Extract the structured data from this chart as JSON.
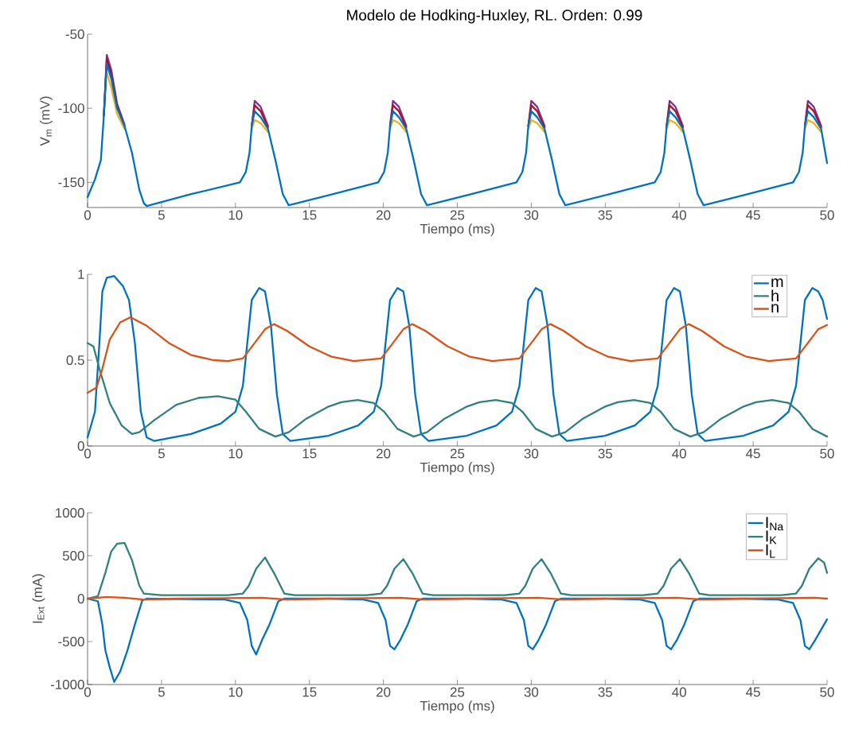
{
  "chart_data": [
    {
      "type": "line",
      "title": "Modelo de Hodking-Huxley, RL. Orden: 0.99",
      "xlabel": "Tiempo (ms)",
      "ylabel": "V$_{m}$ (mV)",
      "xlim": [
        0,
        50
      ],
      "ylim": [
        -167,
        -50
      ],
      "xticks": [
        0,
        5,
        10,
        15,
        20,
        25,
        30,
        35,
        40,
        45,
        50
      ],
      "yticks": [
        -150,
        -100,
        -50
      ],
      "grid": false,
      "legend": false,
      "marker": "none",
      "line_style": "solid",
      "series": [
        {
          "color": "#7e2f8e",
          "x": [
            1.1,
            1.3,
            1.6,
            2.0,
            2.5,
            5,
            11.1,
            11.3,
            11.7,
            12.2,
            15,
            20.45,
            20.65,
            21.05,
            21.55,
            25,
            29.8,
            30.0,
            30.4,
            30.9,
            35,
            39.15,
            39.35,
            39.75,
            40.25,
            45,
            48.5,
            48.7,
            49.1,
            49.6
          ],
          "values": [
            -105,
            -64,
            -74,
            -97,
            -111,
            null,
            -112,
            -95,
            -99,
            -112,
            null,
            -112,
            -95,
            -99,
            -112,
            null,
            -112,
            -95,
            -99,
            -112,
            null,
            -112,
            -95,
            -99,
            -112,
            null,
            -112,
            -95,
            -99,
            -112
          ]
        },
        {
          "color": "#a2142f",
          "x": [
            1.1,
            1.3,
            1.6,
            2.0,
            2.5,
            5,
            11.1,
            11.3,
            11.7,
            12.2,
            15,
            20.45,
            20.65,
            21.05,
            21.55,
            25,
            29.8,
            30.0,
            30.4,
            30.9,
            35,
            39.15,
            39.35,
            39.75,
            40.25,
            45,
            48.5,
            48.7,
            49.1,
            49.6
          ],
          "values": [
            -105,
            -67,
            -77,
            -99,
            -112,
            null,
            -112,
            -98,
            -102,
            -113,
            null,
            -112,
            -98,
            -102,
            -113,
            null,
            -112,
            -98,
            -102,
            -113,
            null,
            -112,
            -98,
            -102,
            -113,
            null,
            -112,
            -98,
            -102,
            -113
          ]
        },
        {
          "color": "#edb120",
          "x": [
            1.3,
            1.6,
            2.0,
            2.5,
            5,
            11.1,
            11.3,
            11.7,
            12.2,
            15,
            20.45,
            20.65,
            21.05,
            21.55,
            25,
            29.8,
            30.0,
            30.4,
            30.9,
            35,
            39.15,
            39.35,
            39.75,
            40.25,
            45,
            48.5,
            48.7,
            49.1,
            49.6
          ],
          "values": [
            -76,
            -86,
            -104,
            -114,
            null,
            -114,
            -108,
            -110,
            -116,
            null,
            -114,
            -108,
            -110,
            -116,
            null,
            -114,
            -108,
            -110,
            -116,
            null,
            -114,
            -108,
            -110,
            -116,
            null,
            -114,
            -108,
            -110,
            -116
          ]
        },
        {
          "color": "#0072bd",
          "x": [
            0,
            0.5,
            0.9,
            1.1,
            1.3,
            1.6,
            2.0,
            2.5,
            3.0,
            3.5,
            3.8,
            4.0,
            7.0,
            10.3,
            10.7,
            10.95,
            11.1,
            11.3,
            11.7,
            12.2,
            12.7,
            13.2,
            13.6,
            16.6,
            19.65,
            20.05,
            20.3,
            20.45,
            20.65,
            21.05,
            21.55,
            22.05,
            22.55,
            22.95,
            25.95,
            29.0,
            29.4,
            29.65,
            29.8,
            30.0,
            30.4,
            30.9,
            31.4,
            31.9,
            32.3,
            35.3,
            38.35,
            38.75,
            39.0,
            39.15,
            39.35,
            39.75,
            40.25,
            40.75,
            41.25,
            41.65,
            44.65,
            47.7,
            48.1,
            48.35,
            48.5,
            48.7,
            49.1,
            49.6,
            50
          ],
          "values": [
            -160,
            -148,
            -135,
            -105,
            -70,
            -80,
            -100,
            -112,
            -130,
            -155,
            -164,
            -166,
            -158,
            -150,
            -143,
            -130,
            -112,
            -102,
            -106,
            -114,
            -135,
            -158,
            -165.5,
            -158,
            -150,
            -143,
            -130,
            -112,
            -102,
            -106,
            -114,
            -135,
            -158,
            -165.5,
            -158,
            -150,
            -143,
            -130,
            -112,
            -102,
            -106,
            -114,
            -135,
            -158,
            -165.5,
            -158,
            -150,
            -143,
            -130,
            -112,
            -102,
            -106,
            -114,
            -135,
            -158,
            -165.5,
            -158,
            -150,
            -143,
            -130,
            -112,
            -102,
            -106,
            -114,
            -137
          ]
        }
      ]
    },
    {
      "type": "line",
      "xlabel": "Tiempo (ms)",
      "xlim": [
        0,
        50
      ],
      "ylim": [
        0,
        1
      ],
      "xticks": [
        0,
        5,
        10,
        15,
        20,
        25,
        30,
        35,
        40,
        45,
        50
      ],
      "yticks": [
        0,
        0.5,
        1
      ],
      "grid": false,
      "legend": "top right",
      "marker": "none",
      "line_style": "solid",
      "series": [
        {
          "name": "m",
          "color": "#0072bd",
          "x": [
            0,
            0.5,
            0.8,
            1.0,
            1.3,
            1.8,
            2.4,
            2.8,
            3.2,
            3.6,
            4.0,
            4.5,
            7,
            9,
            10.0,
            10.5,
            10.8,
            11.1,
            11.6,
            12.0,
            12.4,
            12.8,
            13.2,
            13.7,
            16.3,
            18.3,
            19.35,
            19.85,
            20.15,
            20.45,
            20.95,
            21.35,
            21.75,
            22.15,
            22.55,
            23.05,
            25.65,
            27.65,
            28.7,
            29.2,
            29.5,
            29.8,
            30.3,
            30.7,
            31.1,
            31.5,
            31.9,
            32.4,
            35.0,
            37.0,
            38.05,
            38.55,
            38.85,
            39.15,
            39.65,
            40.05,
            40.45,
            40.85,
            41.25,
            41.75,
            44.35,
            46.35,
            47.4,
            47.9,
            48.2,
            48.5,
            49.0,
            49.4,
            49.7,
            50
          ],
          "values": [
            0.05,
            0.2,
            0.6,
            0.9,
            0.98,
            0.99,
            0.93,
            0.85,
            0.6,
            0.2,
            0.05,
            0.03,
            0.07,
            0.13,
            0.2,
            0.35,
            0.6,
            0.85,
            0.92,
            0.9,
            0.7,
            0.3,
            0.07,
            0.03,
            0.06,
            0.12,
            0.2,
            0.35,
            0.6,
            0.85,
            0.92,
            0.9,
            0.7,
            0.3,
            0.07,
            0.03,
            0.06,
            0.12,
            0.2,
            0.35,
            0.6,
            0.85,
            0.92,
            0.9,
            0.7,
            0.3,
            0.07,
            0.03,
            0.06,
            0.12,
            0.2,
            0.35,
            0.6,
            0.85,
            0.92,
            0.9,
            0.7,
            0.3,
            0.07,
            0.03,
            0.06,
            0.12,
            0.2,
            0.35,
            0.6,
            0.85,
            0.92,
            0.9,
            0.85,
            0.74
          ]
        },
        {
          "name": "h",
          "color": "#31807d",
          "x": [
            0,
            0.4,
            0.8,
            1.5,
            2.3,
            3.0,
            3.5,
            4.5,
            6.0,
            7.5,
            8.8,
            10.0,
            10.7,
            11.6,
            12.7,
            13.6,
            14.8,
            16.3,
            17.15,
            18.25,
            19.35,
            20.05,
            20.95,
            22.05,
            22.95,
            24.15,
            25.65,
            26.5,
            27.6,
            28.7,
            29.4,
            30.3,
            31.4,
            32.3,
            33.5,
            35.0,
            35.85,
            36.95,
            38.05,
            38.75,
            39.65,
            40.75,
            41.65,
            42.85,
            44.35,
            45.2,
            46.3,
            47.4,
            48.1,
            49.0,
            50
          ],
          "values": [
            0.6,
            0.58,
            0.45,
            0.25,
            0.12,
            0.07,
            0.08,
            0.15,
            0.24,
            0.28,
            0.29,
            0.27,
            0.2,
            0.1,
            0.055,
            0.08,
            0.16,
            0.23,
            0.255,
            0.268,
            0.25,
            0.2,
            0.1,
            0.055,
            0.08,
            0.16,
            0.23,
            0.255,
            0.268,
            0.25,
            0.2,
            0.1,
            0.055,
            0.08,
            0.16,
            0.23,
            0.255,
            0.268,
            0.25,
            0.2,
            0.1,
            0.055,
            0.08,
            0.16,
            0.23,
            0.255,
            0.268,
            0.25,
            0.2,
            0.1,
            0.055
          ]
        },
        {
          "name": "n",
          "color": "#d95319",
          "x": [
            0,
            0.6,
            1.0,
            1.5,
            2.2,
            2.9,
            4.0,
            5.5,
            7.0,
            8.5,
            9.5,
            10.5,
            11.3,
            12.0,
            12.6,
            13.5,
            15.0,
            16.5,
            18.0,
            19.85,
            20.65,
            21.35,
            21.95,
            22.85,
            24.35,
            25.85,
            27.35,
            29.2,
            30.0,
            30.7,
            31.3,
            32.2,
            33.7,
            35.2,
            36.7,
            38.55,
            39.35,
            40.05,
            40.65,
            41.55,
            43.05,
            44.55,
            46.05,
            47.9,
            48.7,
            49.4,
            50
          ],
          "values": [
            0.31,
            0.34,
            0.45,
            0.62,
            0.72,
            0.75,
            0.7,
            0.6,
            0.53,
            0.5,
            0.495,
            0.51,
            0.6,
            0.68,
            0.71,
            0.67,
            0.58,
            0.52,
            0.495,
            0.51,
            0.6,
            0.68,
            0.71,
            0.67,
            0.58,
            0.52,
            0.495,
            0.51,
            0.6,
            0.68,
            0.71,
            0.67,
            0.58,
            0.52,
            0.495,
            0.51,
            0.6,
            0.68,
            0.71,
            0.67,
            0.58,
            0.52,
            0.495,
            0.51,
            0.6,
            0.68,
            0.705
          ]
        }
      ]
    },
    {
      "type": "line",
      "xlabel": "Tiempo (ms)",
      "ylabel": "I$_{Ext}$ (mA)",
      "xlim": [
        0,
        50
      ],
      "ylim": [
        -1000,
        1000
      ],
      "xticks": [
        0,
        5,
        10,
        15,
        20,
        25,
        30,
        35,
        40,
        45,
        50
      ],
      "yticks": [
        -1000,
        -500,
        0,
        500,
        1000
      ],
      "grid": false,
      "legend": "top right",
      "marker": "none",
      "line_style": "solid",
      "series": [
        {
          "name": "I$_{Na}$",
          "color": "#0072bd",
          "x": [
            0,
            0.7,
            1.0,
            1.2,
            1.5,
            1.8,
            2.2,
            2.7,
            3.2,
            3.7,
            4.0,
            9.3,
            10.3,
            10.8,
            11.1,
            11.4,
            11.8,
            12.3,
            12.9,
            13.3,
            16.3,
            18.65,
            19.65,
            20.15,
            20.45,
            20.75,
            21.15,
            21.65,
            22.25,
            22.65,
            25.65,
            28.0,
            29.0,
            29.5,
            29.8,
            30.1,
            30.5,
            31.0,
            31.6,
            32.0,
            35.0,
            37.35,
            38.35,
            38.85,
            39.15,
            39.45,
            39.85,
            40.35,
            40.95,
            41.35,
            44.35,
            46.7,
            47.7,
            48.2,
            48.5,
            48.8,
            49.2,
            49.7,
            50
          ],
          "values": [
            0,
            -30,
            -300,
            -600,
            -800,
            -970,
            -850,
            -600,
            -300,
            -20,
            0,
            -10,
            -50,
            -250,
            -550,
            -650,
            -480,
            -300,
            -30,
            0,
            0,
            -10,
            -50,
            -250,
            -550,
            -590,
            -480,
            -300,
            -30,
            0,
            0,
            -10,
            -50,
            -250,
            -550,
            -590,
            -480,
            -300,
            -30,
            0,
            0,
            -10,
            -50,
            -250,
            -550,
            -590,
            -480,
            -300,
            -30,
            0,
            0,
            -10,
            -50,
            -250,
            -550,
            -590,
            -480,
            -330,
            -240
          ]
        },
        {
          "name": "I$_{K}$",
          "color": "#31807d",
          "x": [
            0,
            0.7,
            1.2,
            1.6,
            2.0,
            2.5,
            3.0,
            3.5,
            3.8,
            5,
            9.5,
            10.5,
            10.9,
            11.4,
            12.0,
            12.6,
            13.3,
            14.0,
            18.85,
            19.85,
            20.25,
            20.75,
            21.35,
            21.95,
            22.65,
            23.35,
            28.2,
            29.2,
            29.6,
            30.1,
            30.7,
            31.3,
            32.0,
            32.7,
            37.55,
            38.55,
            38.95,
            39.45,
            40.05,
            40.65,
            41.35,
            42.05,
            46.9,
            47.9,
            48.3,
            48.8,
            49.4,
            49.8,
            50
          ],
          "values": [
            0,
            30,
            300,
            550,
            640,
            650,
            450,
            150,
            60,
            40,
            40,
            60,
            150,
            350,
            480,
            300,
            60,
            40,
            40,
            60,
            150,
            350,
            460,
            300,
            60,
            40,
            40,
            60,
            150,
            350,
            460,
            300,
            60,
            40,
            40,
            60,
            150,
            350,
            460,
            300,
            60,
            40,
            40,
            60,
            150,
            350,
            470,
            420,
            300
          ]
        },
        {
          "name": "I$_{L}$",
          "color": "#d95319",
          "x": [
            0,
            1.3,
            2.5,
            3.8,
            6,
            11.8,
            13.5,
            16.3,
            21.15,
            22.85,
            25.65,
            30.5,
            32.2,
            35,
            39.85,
            41.55,
            44.35,
            49.2,
            50
          ],
          "values": [
            0,
            20,
            10,
            -10,
            0,
            10,
            -10,
            0,
            10,
            -10,
            0,
            10,
            -10,
            0,
            10,
            -10,
            0,
            10,
            0
          ]
        }
      ]
    }
  ]
}
